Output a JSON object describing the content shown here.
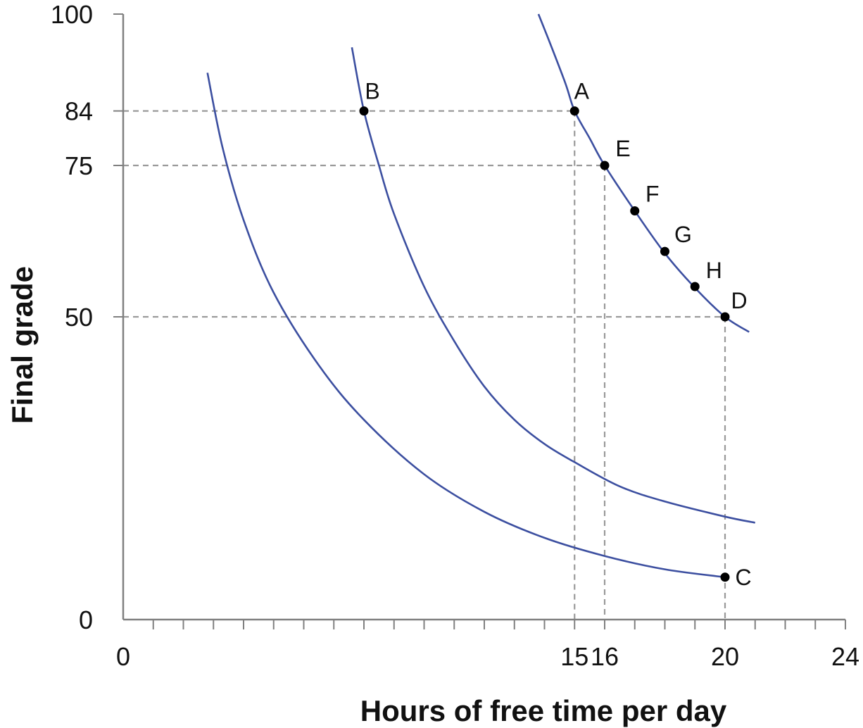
{
  "chart_data": {
    "type": "line",
    "title": "",
    "xlabel": "Hours of free time per day",
    "ylabel": "Final grade",
    "xlim": [
      0,
      24
    ],
    "ylim": [
      0,
      100
    ],
    "x_tick_labels": [
      "0",
      "15",
      "16",
      "20",
      "24"
    ],
    "x_tick_label_values": [
      0,
      15,
      16,
      20,
      24
    ],
    "x_minor_ticks": [
      1,
      2,
      3,
      4,
      5,
      6,
      7,
      8,
      9,
      10,
      11,
      12,
      13,
      14,
      15,
      16,
      17,
      18,
      19,
      20,
      21,
      22,
      23
    ],
    "y_tick_labels": [
      "0",
      "50",
      "75",
      "84",
      "100"
    ],
    "y_tick_label_values": [
      0,
      50,
      75,
      84,
      100
    ],
    "grid": false,
    "colors": {
      "curve": "#3c4fa0",
      "guide": "#9a9a9a",
      "axis": "#808080",
      "point": "#000000"
    },
    "series": [
      {
        "x": [
          2.8,
          3.3,
          4.0,
          5.0,
          6.5,
          8.0,
          10.0,
          12.0,
          14.0,
          16.0,
          18.0,
          20.0
        ],
        "y": [
          90.3,
          78.0,
          66.0,
          54.0,
          42.0,
          33.0,
          24.0,
          17.8,
          13.5,
          10.5,
          8.3,
          7.0
        ]
      },
      {
        "x": [
          7.6,
          8.0,
          8.5,
          9.0,
          10.0,
          11.0,
          12.0,
          13.0,
          14.0,
          15.0,
          16.5,
          18.0,
          20.0,
          21.0
        ],
        "y": [
          94.5,
          84.0,
          75.0,
          67.0,
          55.0,
          46.0,
          38.5,
          33.0,
          29.0,
          26.0,
          22.0,
          19.5,
          17.0,
          16.0
        ]
      },
      {
        "x": [
          13.8,
          14.2,
          14.7,
          15.0,
          15.5,
          16.0,
          17.0,
          18.0,
          19.0,
          20.0,
          20.8
        ],
        "y": [
          100,
          95.0,
          88.5,
          84.0,
          79.5,
          75.0,
          67.5,
          60.5,
          54.8,
          50.0,
          47.5
        ]
      }
    ],
    "points": [
      {
        "label": "A",
        "x": 15,
        "y": 84
      },
      {
        "label": "B",
        "x": 8,
        "y": 84
      },
      {
        "label": "C",
        "x": 20,
        "y": 7
      },
      {
        "label": "D",
        "x": 20,
        "y": 50
      },
      {
        "label": "E",
        "x": 16,
        "y": 75
      },
      {
        "label": "F",
        "x": 17,
        "y": 67.5
      },
      {
        "label": "G",
        "x": 18,
        "y": 60.8
      },
      {
        "label": "H",
        "x": 19,
        "y": 55
      }
    ],
    "guide_lines": [
      {
        "from": [
          0,
          84
        ],
        "to": [
          15,
          84
        ]
      },
      {
        "from": [
          0,
          75
        ],
        "to": [
          16,
          75
        ]
      },
      {
        "from": [
          0,
          50
        ],
        "to": [
          20,
          50
        ]
      },
      {
        "from": [
          15,
          84
        ],
        "to": [
          15,
          0
        ]
      },
      {
        "from": [
          16,
          75
        ],
        "to": [
          16,
          0
        ]
      },
      {
        "from": [
          20,
          50
        ],
        "to": [
          20,
          0
        ]
      }
    ]
  }
}
